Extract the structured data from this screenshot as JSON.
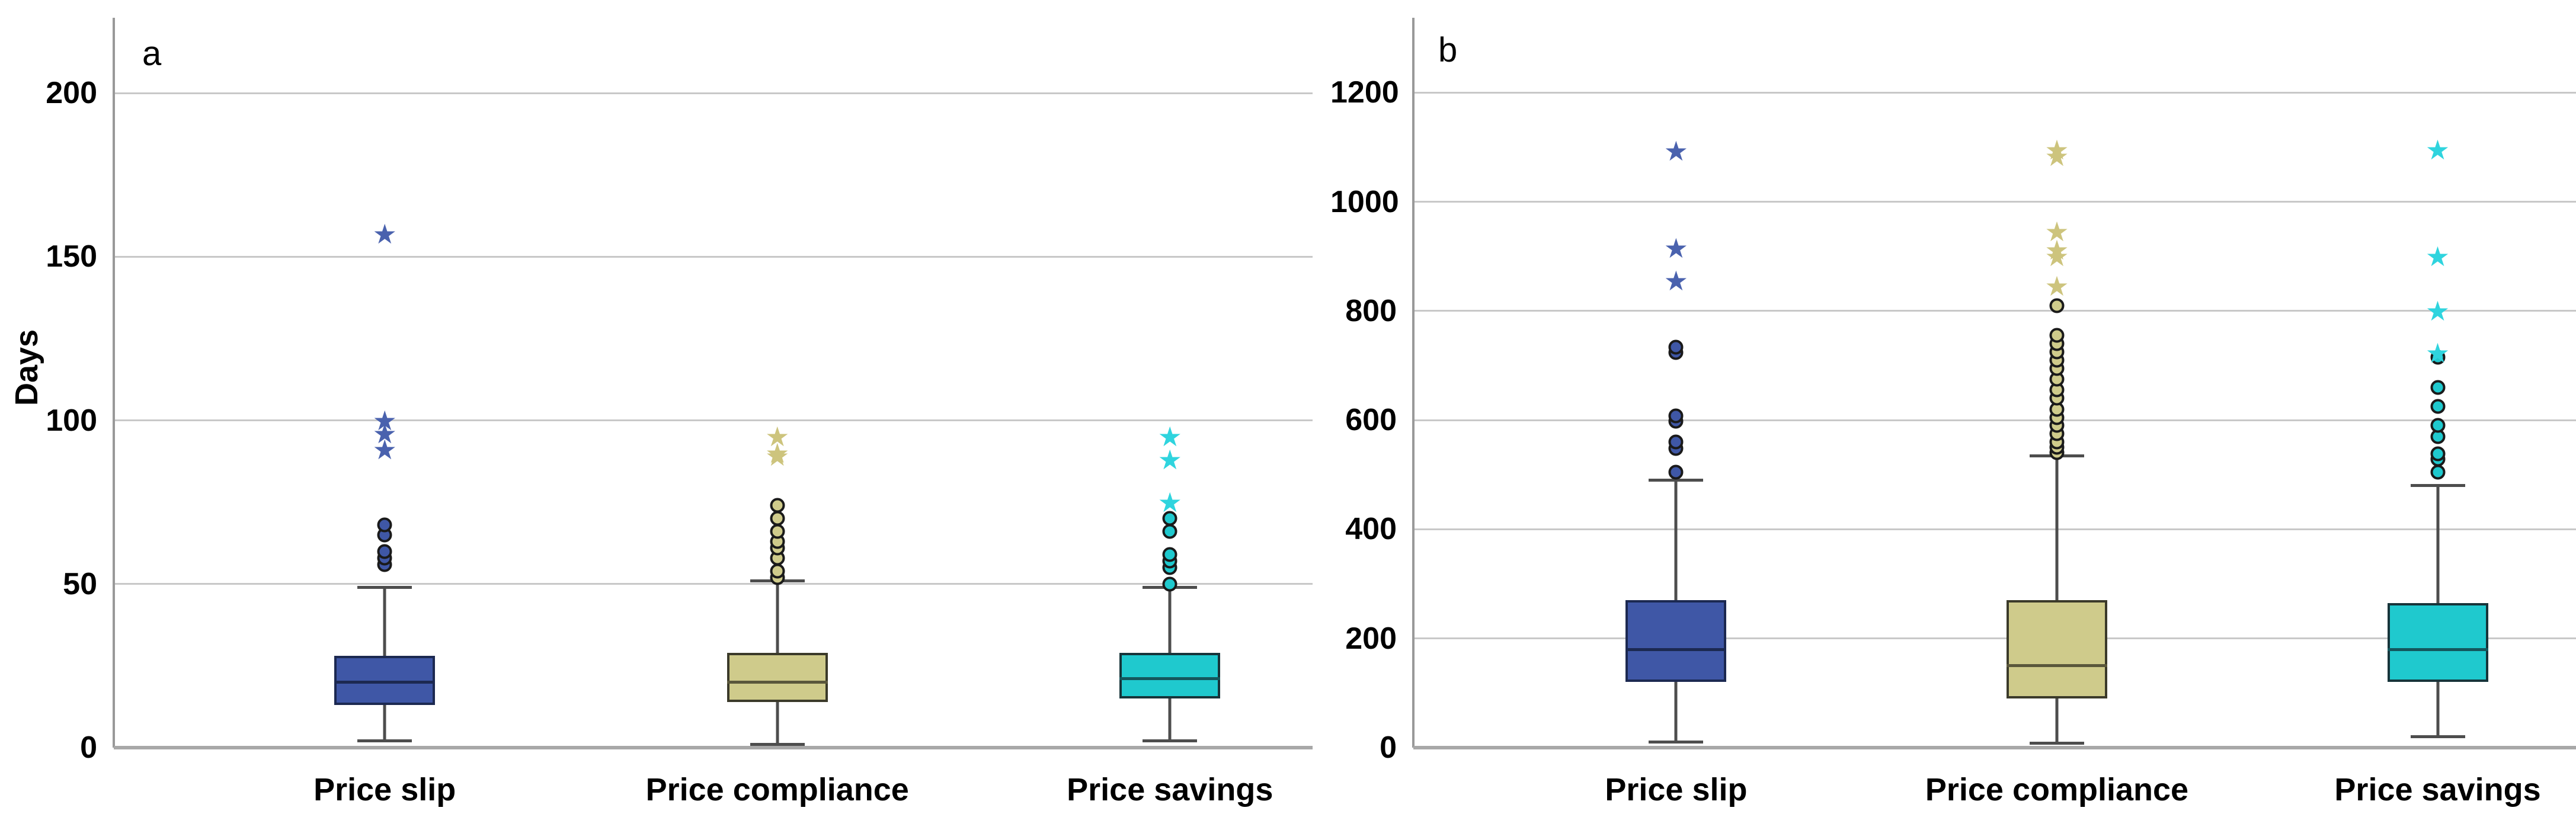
{
  "style": {
    "background": "#FFFFFF",
    "gridline_color": "#C8C8C8",
    "axis_spine_color": "#999999",
    "baseline_color": "#A8A8A8",
    "whisker_color": "#4D4D4D",
    "outlier_ring_color": "#1A1A1A",
    "text_color": "#000000"
  },
  "chart_data": [
    {
      "type": "box",
      "panel_label": "a",
      "ylabel": "Days",
      "yticks": [
        0,
        50,
        100,
        150,
        200
      ],
      "ylim": [
        0,
        223
      ],
      "grid": true,
      "legend": "none",
      "categories": [
        "Price slip",
        "Price compliance",
        "Price savings"
      ],
      "series": [
        {
          "name": "Price slip",
          "color": "#3F57A6",
          "border": "#1C2951",
          "median_color": "#1C2951",
          "star_color": "#4A62AE",
          "whisker_low": 2,
          "q1": 13,
          "median": 20,
          "q3": 28,
          "whisker_high": 49,
          "outliers_circle": [
            56,
            58,
            60,
            65,
            68
          ],
          "outliers_star": [
            91,
            96,
            100,
            157
          ]
        },
        {
          "name": "Price compliance",
          "color": "#CFCB8B",
          "border": "#3B3A2A",
          "median_color": "#5A573B",
          "star_color": "#CDC47D",
          "whisker_low": 1,
          "q1": 14,
          "median": 20,
          "q3": 29,
          "whisker_high": 51,
          "outliers_circle": [
            52,
            54,
            58,
            61,
            63,
            66,
            70,
            74
          ],
          "outliers_star": [
            89,
            90,
            95
          ]
        },
        {
          "name": "Price savings",
          "color": "#1FC9CE",
          "border": "#17343A",
          "median_color": "#14565C",
          "star_color": "#2FD4DE",
          "whisker_low": 2,
          "q1": 15,
          "median": 21,
          "q3": 29,
          "whisker_high": 49,
          "outliers_circle": [
            50,
            55,
            57,
            59,
            66,
            70
          ],
          "outliers_star": [
            75,
            88,
            95
          ]
        }
      ]
    },
    {
      "type": "box",
      "panel_label": "b",
      "ylabel": "",
      "yticks": [
        0,
        200,
        400,
        600,
        800,
        1000,
        1200
      ],
      "ylim": [
        0,
        1337
      ],
      "grid": true,
      "legend": "none",
      "categories": [
        "Price slip",
        "Price compliance",
        "Price savings"
      ],
      "series": [
        {
          "name": "Price slip",
          "color": "#3F57A6",
          "border": "#1C2951",
          "median_color": "#1C2951",
          "star_color": "#4A62AE",
          "whisker_low": 10,
          "q1": 120,
          "median": 180,
          "q3": 270,
          "whisker_high": 490,
          "outliers_circle": [
            505,
            548,
            560,
            598,
            608,
            724,
            734
          ],
          "outliers_star": [
            855,
            915,
            1093
          ]
        },
        {
          "name": "Price compliance",
          "color": "#CFCB8B",
          "border": "#3B3A2A",
          "median_color": "#5A573B",
          "star_color": "#CDC47D",
          "whisker_low": 8,
          "q1": 90,
          "median": 150,
          "q3": 270,
          "whisker_high": 535,
          "outliers_circle": [
            540,
            550,
            560,
            575,
            590,
            605,
            620,
            640,
            655,
            675,
            695,
            710,
            725,
            740,
            755,
            810
          ],
          "outliers_star": [
            845,
            900,
            912,
            945,
            1083,
            1095
          ]
        },
        {
          "name": "Price savings",
          "color": "#1FC9CE",
          "border": "#17343A",
          "median_color": "#14565C",
          "star_color": "#2FD4DE",
          "whisker_low": 20,
          "q1": 120,
          "median": 180,
          "q3": 265,
          "whisker_high": 480,
          "outliers_circle": [
            505,
            528,
            538,
            570,
            590,
            625,
            660,
            715
          ],
          "outliers_star": [
            723,
            800,
            900,
            1095
          ]
        }
      ]
    }
  ]
}
